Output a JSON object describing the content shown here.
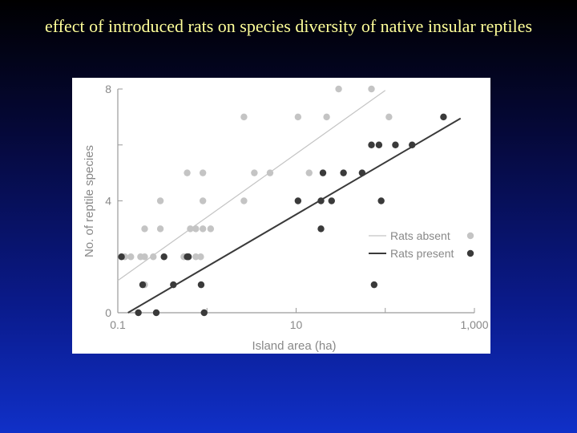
{
  "slide": {
    "title": "effect of introduced rats on species diversity of native insular reptiles"
  },
  "colors": {
    "rats_absent": "#c4c4c4",
    "rats_present": "#3a3a3a",
    "axis_text": "#888888",
    "title_text": "#ffff99"
  },
  "chart_data": {
    "type": "scatter",
    "title": "",
    "xlabel": "Island area (ha)",
    "ylabel": "No. of reptile species",
    "x_scale": "log",
    "xlim": [
      0.1,
      1000
    ],
    "ylim": [
      0,
      8
    ],
    "x_ticks": [
      {
        "value": 0.1,
        "label": "0.1"
      },
      {
        "value": 10,
        "label": "10"
      },
      {
        "value": 1000,
        "label": "1,000"
      }
    ],
    "y_ticks": [
      {
        "value": 0,
        "label": "0"
      },
      {
        "value": 4,
        "label": "4"
      },
      {
        "value": 8,
        "label": "8"
      }
    ],
    "grid": false,
    "legend_position": "bottom-right",
    "series": [
      {
        "name": "Rats absent",
        "color": "#c4c4c4",
        "points": [
          [
            0.12,
            2
          ],
          [
            0.14,
            2
          ],
          [
            0.18,
            2
          ],
          [
            0.2,
            2
          ],
          [
            0.25,
            2
          ],
          [
            0.55,
            2
          ],
          [
            0.75,
            2
          ],
          [
            0.85,
            2
          ],
          [
            0.2,
            1
          ],
          [
            0.2,
            3
          ],
          [
            0.3,
            3
          ],
          [
            0.65,
            3
          ],
          [
            0.75,
            3
          ],
          [
            0.9,
            3
          ],
          [
            1.1,
            3
          ],
          [
            0.3,
            4
          ],
          [
            0.9,
            4
          ],
          [
            2.6,
            4
          ],
          [
            0.6,
            5
          ],
          [
            0.9,
            5
          ],
          [
            3.4,
            5
          ],
          [
            5.1,
            5
          ],
          [
            14,
            5
          ],
          [
            2.6,
            7
          ],
          [
            10.5,
            7
          ],
          [
            22,
            7
          ],
          [
            110,
            7
          ],
          [
            30,
            8
          ],
          [
            70,
            8
          ]
        ],
        "fit": {
          "x": [
            0.1,
            100
          ],
          "y": [
            1.15,
            7.95
          ]
        }
      },
      {
        "name": "Rats present",
        "color": "#3a3a3a",
        "points": [
          [
            0.11,
            2
          ],
          [
            0.33,
            2
          ],
          [
            0.6,
            2
          ],
          [
            0.62,
            2
          ],
          [
            0.19,
            1
          ],
          [
            0.42,
            1
          ],
          [
            0.86,
            1
          ],
          [
            75,
            1
          ],
          [
            0.17,
            0
          ],
          [
            0.27,
            0
          ],
          [
            0.93,
            0
          ],
          [
            10.5,
            4
          ],
          [
            19,
            4
          ],
          [
            25,
            4
          ],
          [
            90,
            4
          ],
          [
            20,
            5
          ],
          [
            34,
            5
          ],
          [
            55,
            5
          ],
          [
            19,
            3
          ],
          [
            70,
            6
          ],
          [
            85,
            6
          ],
          [
            130,
            6
          ],
          [
            200,
            6
          ],
          [
            450,
            7
          ]
        ],
        "fit": {
          "x": [
            0.13,
            700
          ],
          "y": [
            0.0,
            6.95
          ]
        }
      }
    ]
  }
}
